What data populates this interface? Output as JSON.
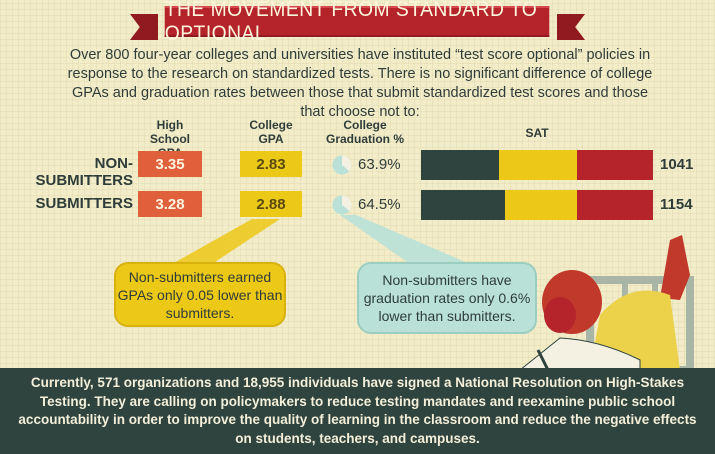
{
  "title": "THE MOVEMENT FROM STANDARD TO OPTIONAL",
  "intro": "Over 800 four-year colleges and universities have instituted “test score optional” policies in response to the research on standardized tests. There is no significant difference of college GPAs and graduation rates between those that submit standardized test scores and those that choose not to:",
  "columns": {
    "hs_gpa": [
      "High School",
      "GPA"
    ],
    "college_gpa": [
      "College",
      "GPA"
    ],
    "grad": [
      "College",
      "Graduation %"
    ],
    "sat": "SAT"
  },
  "rows": [
    {
      "label": "NON-SUBMITTERS",
      "hs_gpa": "3.35",
      "college_gpa": "2.83",
      "grad_text": "63.9%",
      "grad_value": 0.639,
      "sat": "1041",
      "sat_value": 1041
    },
    {
      "label": "SUBMITTERS",
      "hs_gpa": "3.28",
      "college_gpa": "2.88",
      "grad_text": "64.5%",
      "grad_value": 0.645,
      "sat": "1154",
      "sat_value": 1154
    }
  ],
  "callouts": {
    "gpa": "Non-submitters earned GPAs only 0.05 lower than submitters.",
    "grad": "Non-submitters have graduation rates only 0.6% lower than submitters."
  },
  "footer": "Currently, 571 organizations and 18,955 individuals have signed a National Resolution on High-Stakes Testing. They are calling on policymakers to reduce testing mandates and reexamine public school accountability in order to improve the quality of learning in the classroom and reduce the negative effects on students, teachers, and campuses.",
  "colors": {
    "banner": "#b5232b",
    "hs_gpa": "#e0603c",
    "college_gpa": "#ecc817",
    "grad": "#b9e1d7",
    "sat_dark": "#2f433f",
    "sat_yellow": "#ecc817",
    "sat_red": "#b5232b",
    "footer": "#2f433f",
    "background": "#f2ecc9"
  }
}
